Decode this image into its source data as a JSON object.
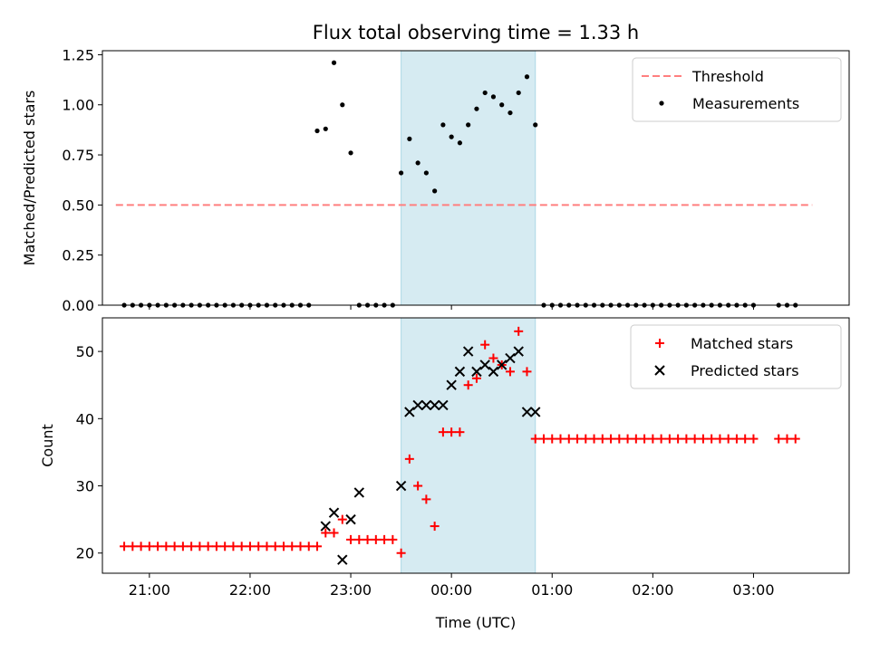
{
  "title": "Flux total observing time = 1.33 h",
  "xlabel": "Time (UTC)",
  "x_ticks": [
    "21:00",
    "22:00",
    "23:00",
    "00:00",
    "01:00",
    "02:00",
    "03:00"
  ],
  "colors": {
    "threshold": "#ff7f7f",
    "matched": "#ff0000",
    "predicted": "#000000",
    "measure": "#000000",
    "span": "#add8e6"
  },
  "chart_data": [
    {
      "type": "scatter",
      "ylabel": "Matched/Predicted stars",
      "ylim": [
        0,
        1.27
      ],
      "yticks": [
        "0.00",
        "0.25",
        "0.50",
        "0.75",
        "1.00",
        "1.25"
      ],
      "ytick_values": [
        0,
        0.25,
        0.5,
        0.75,
        1.0,
        1.25
      ],
      "xlim": [
        "20:32",
        "03:57"
      ],
      "legend": {
        "placement": "top-right",
        "entries": [
          "Threshold",
          "Measurements"
        ]
      },
      "shaded_span": [
        "23:30",
        "00:50"
      ],
      "threshold": {
        "value": 0.5,
        "x": [
          "20:40",
          "03:35"
        ]
      },
      "series": [
        {
          "name": "Measurements",
          "x": [
            "20:45",
            "20:50",
            "20:55",
            "21:00",
            "21:05",
            "21:10",
            "21:15",
            "21:20",
            "21:25",
            "21:30",
            "21:35",
            "21:40",
            "21:45",
            "21:50",
            "21:55",
            "22:00",
            "22:05",
            "22:10",
            "22:15",
            "22:20",
            "22:25",
            "22:30",
            "22:35",
            "22:40",
            "22:45",
            "22:50",
            "22:55",
            "23:00",
            "23:05",
            "23:10",
            "23:15",
            "23:20",
            "23:25",
            "23:30",
            "23:35",
            "23:40",
            "23:45",
            "23:50",
            "23:55",
            "00:00",
            "00:05",
            "00:10",
            "00:15",
            "00:20",
            "00:25",
            "00:30",
            "00:35",
            "00:40",
            "00:45",
            "00:50",
            "00:55",
            "01:00",
            "01:05",
            "01:10",
            "01:15",
            "01:20",
            "01:25",
            "01:30",
            "01:35",
            "01:40",
            "01:45",
            "01:50",
            "01:55",
            "02:00",
            "02:05",
            "02:10",
            "02:15",
            "02:20",
            "02:25",
            "02:30",
            "02:35",
            "02:40",
            "02:45",
            "02:50",
            "02:55",
            "03:00",
            "03:15",
            "03:20",
            "03:25"
          ],
          "y": [
            0,
            0,
            0,
            0,
            0,
            0,
            0,
            0,
            0,
            0,
            0,
            0,
            0,
            0,
            0,
            0,
            0,
            0,
            0,
            0,
            0,
            0,
            0,
            0.87,
            0.88,
            1.21,
            1.0,
            0.76,
            0,
            0,
            0,
            0,
            0,
            0.66,
            0.83,
            0.71,
            0.66,
            0.57,
            0.9,
            0.84,
            0.81,
            0.9,
            0.98,
            1.06,
            1.04,
            1.0,
            0.96,
            1.06,
            1.14,
            0.9,
            0,
            0,
            0,
            0,
            0,
            0,
            0,
            0,
            0,
            0,
            0,
            0,
            0,
            0,
            0,
            0,
            0,
            0,
            0,
            0,
            0,
            0,
            0,
            0,
            0,
            0,
            0,
            0,
            0
          ]
        }
      ]
    },
    {
      "type": "scatter",
      "ylabel": "Count",
      "ylim": [
        17,
        55
      ],
      "yticks": [
        "20",
        "30",
        "40",
        "50"
      ],
      "ytick_values": [
        20,
        30,
        40,
        50
      ],
      "xlim": [
        "20:32",
        "03:57"
      ],
      "legend": {
        "placement": "top-right",
        "entries": [
          "Matched stars",
          "Predicted stars"
        ]
      },
      "shaded_span": [
        "23:30",
        "00:50"
      ],
      "series": [
        {
          "name": "Matched stars",
          "marker": "plus",
          "x": [
            "20:45",
            "20:50",
            "20:55",
            "21:00",
            "21:05",
            "21:10",
            "21:15",
            "21:20",
            "21:25",
            "21:30",
            "21:35",
            "21:40",
            "21:45",
            "21:50",
            "21:55",
            "22:00",
            "22:05",
            "22:10",
            "22:15",
            "22:20",
            "22:25",
            "22:30",
            "22:35",
            "22:40",
            "22:45",
            "22:50",
            "22:55",
            "23:00",
            "23:05",
            "23:10",
            "23:15",
            "23:20",
            "23:25",
            "23:30",
            "23:35",
            "23:40",
            "23:45",
            "23:50",
            "23:55",
            "00:00",
            "00:05",
            "00:10",
            "00:15",
            "00:20",
            "00:25",
            "00:30",
            "00:35",
            "00:40",
            "00:45",
            "00:50",
            "00:55",
            "01:00",
            "01:05",
            "01:10",
            "01:15",
            "01:20",
            "01:25",
            "01:30",
            "01:35",
            "01:40",
            "01:45",
            "01:50",
            "01:55",
            "02:00",
            "02:05",
            "02:10",
            "02:15",
            "02:20",
            "02:25",
            "02:30",
            "02:35",
            "02:40",
            "02:45",
            "02:50",
            "02:55",
            "03:00",
            "03:15",
            "03:20",
            "03:25"
          ],
          "y": [
            21,
            21,
            21,
            21,
            21,
            21,
            21,
            21,
            21,
            21,
            21,
            21,
            21,
            21,
            21,
            21,
            21,
            21,
            21,
            21,
            21,
            21,
            21,
            21,
            23,
            23,
            25,
            22,
            22,
            22,
            22,
            22,
            22,
            20,
            34,
            30,
            28,
            24,
            38,
            38,
            38,
            45,
            46,
            51,
            49,
            48,
            47,
            53,
            47,
            37,
            37,
            37,
            37,
            37,
            37,
            37,
            37,
            37,
            37,
            37,
            37,
            37,
            37,
            37,
            37,
            37,
            37,
            37,
            37,
            37,
            37,
            37,
            37,
            37,
            37,
            37,
            37,
            37,
            37
          ]
        },
        {
          "name": "Predicted stars",
          "marker": "x",
          "x": [
            "22:45",
            "22:50",
            "22:55",
            "23:00",
            "23:05",
            "23:30",
            "23:35",
            "23:40",
            "23:45",
            "23:50",
            "23:55",
            "00:00",
            "00:05",
            "00:10",
            "00:15",
            "00:20",
            "00:25",
            "00:30",
            "00:35",
            "00:40",
            "00:45",
            "00:50"
          ],
          "y": [
            24,
            26,
            19,
            25,
            29,
            30,
            41,
            42,
            42,
            42,
            42,
            45,
            47,
            50,
            47,
            48,
            47,
            48,
            49,
            50,
            41,
            41
          ]
        }
      ]
    }
  ]
}
